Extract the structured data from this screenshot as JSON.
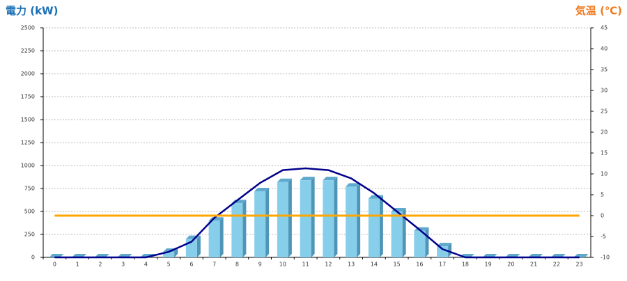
{
  "chart_data": {
    "type": "bar",
    "y_title": "電力 (kW)",
    "y2_title": "気温 (℃)",
    "categories": [
      "0",
      "1",
      "2",
      "3",
      "4",
      "5",
      "6",
      "7",
      "8",
      "9",
      "10",
      "11",
      "12",
      "13",
      "14",
      "15",
      "16",
      "17",
      "18",
      "19",
      "20",
      "21",
      "22",
      "23"
    ],
    "series": [
      {
        "kind": "bar",
        "color": "#87ceeb",
        "values": [
          0,
          0,
          0,
          0,
          0,
          60,
          200,
          400,
          590,
          720,
          820,
          840,
          840,
          770,
          640,
          500,
          290,
          120,
          0,
          0,
          0,
          0,
          0,
          0
        ]
      },
      {
        "kind": "line",
        "color": "#00008b",
        "values": [
          0,
          0,
          0,
          0,
          0,
          60,
          170,
          430,
          620,
          810,
          950,
          970,
          950,
          860,
          700,
          500,
          300,
          90,
          0,
          0,
          0,
          0,
          0,
          0
        ]
      },
      {
        "kind": "line",
        "axis": "y2",
        "color": "#ffa500",
        "values": [
          0,
          0,
          0,
          0,
          0,
          0,
          0,
          0,
          0,
          0,
          0,
          0,
          0,
          0,
          0,
          0,
          0,
          0,
          0,
          0,
          0,
          0,
          0,
          0
        ]
      }
    ],
    "ylim": [
      0,
      2500
    ],
    "yticks": [
      0,
      250,
      500,
      750,
      1000,
      1250,
      1500,
      1750,
      2000,
      2250,
      2500
    ],
    "y2lim": [
      -10,
      45
    ],
    "y2ticks": [
      -10,
      -5,
      0,
      5,
      10,
      15,
      20,
      25,
      30,
      35,
      40,
      45
    ],
    "grid": true
  }
}
